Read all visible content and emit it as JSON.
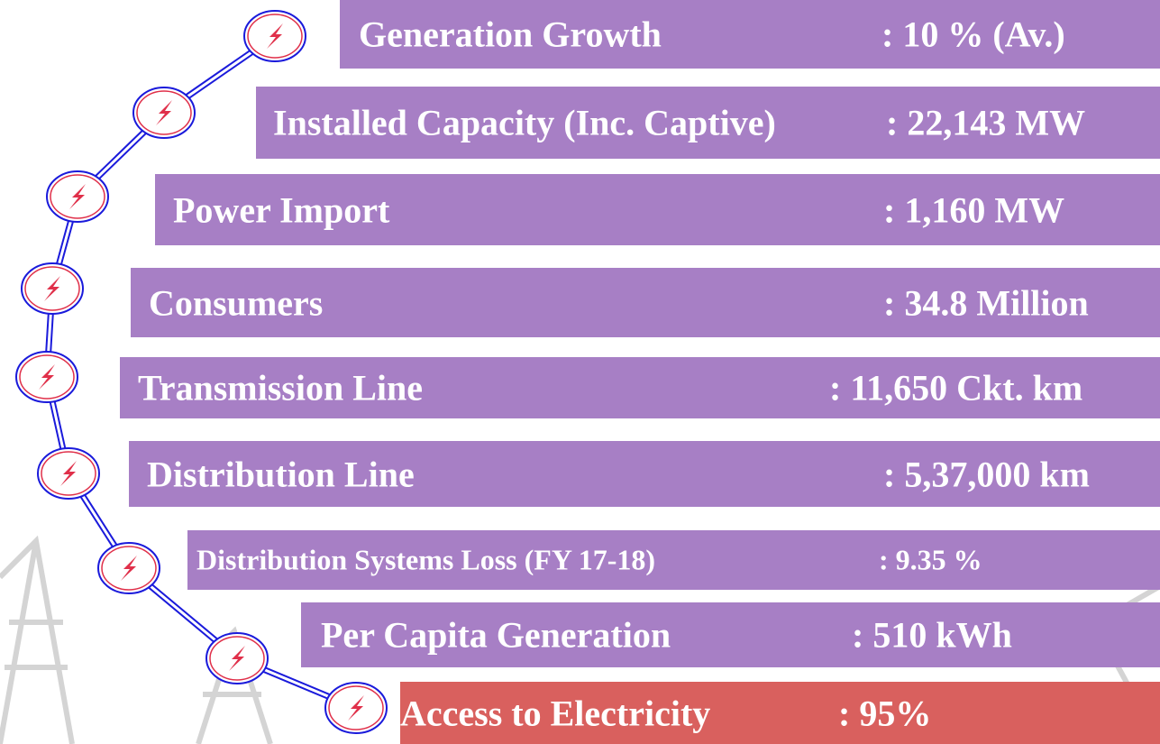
{
  "items": [
    {
      "label": "Generation Growth",
      "value": ": 10 % (Av.)"
    },
    {
      "label": "Installed Capacity (Inc. Captive)",
      "value": ": 22,143 MW"
    },
    {
      "label": "Power Import",
      "value": ": 1,160 MW"
    },
    {
      "label": "Consumers",
      "value": ": 34.8 Million"
    },
    {
      "label": "Transmission Line",
      "value": ": 11,650 Ckt. km"
    },
    {
      "label": "Distribution Line",
      "value": ": 5,37,000 km"
    },
    {
      "label": "Distribution Systems Loss (FY 17-18)",
      "value": ": 9.35 %"
    },
    {
      "label": "Per Capita Generation",
      "value": ": 510 kWh"
    },
    {
      "label": "Access to Electricity",
      "value": ": 95%"
    }
  ]
}
